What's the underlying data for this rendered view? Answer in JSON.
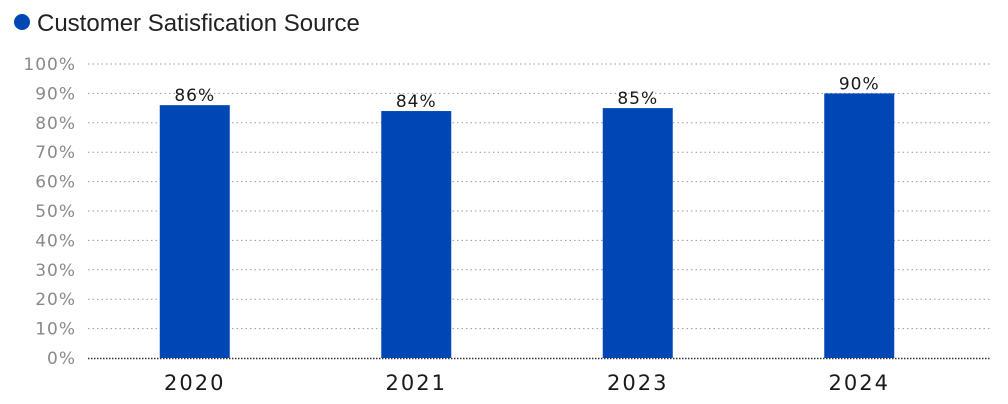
{
  "legend": {
    "label": "Customer Satisfication Source",
    "color": "#0047b5"
  },
  "chart_data": {
    "type": "bar",
    "title": "",
    "xlabel": "",
    "ylabel": "",
    "categories": [
      "2020",
      "2021",
      "2023",
      "2024"
    ],
    "series": [
      {
        "name": "Customer Satisfication Source",
        "values": [
          86,
          84,
          85,
          90
        ],
        "data_labels": [
          "86%",
          "84%",
          "85%",
          "90%"
        ],
        "color": "#0047b5"
      }
    ],
    "ylim": [
      0,
      100
    ],
    "y_ticks": [
      "0%",
      "10%",
      "20%",
      "30%",
      "40%",
      "50%",
      "60%",
      "70%",
      "80%",
      "90%",
      "100%"
    ],
    "grid": "horizontal dotted",
    "legend_position": "top-left",
    "colors": {
      "bar": "#0047b5",
      "grid": "#9a9a9a",
      "axis": "#333333"
    }
  }
}
